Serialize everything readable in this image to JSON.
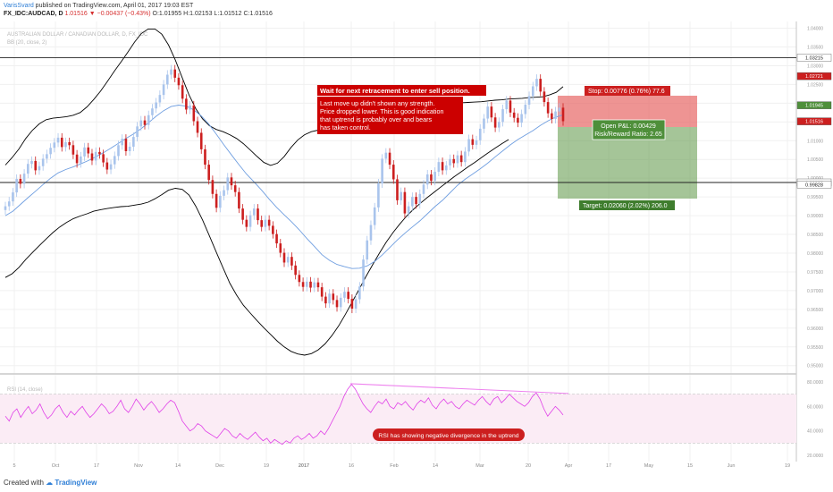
{
  "header": {
    "author": "VarisSvard",
    "published": "published on TradingView.com, April 01, 2017 19:03 EST",
    "symbol": "FX_IDC:AUDCAD, D",
    "last": "1.01516",
    "change": "−0.00437 (−0.43%)",
    "ohlc": [
      "O:1.01955",
      "H:1.02153",
      "L:1.01512",
      "C:1.01516"
    ]
  },
  "watermark": {
    "pair": "AUSTRALIAN DOLLAR / CANADIAN DOLLAR, D, FX_IDC",
    "indicator": "BB (20, close, 2)",
    "rsi": "RSI (14, close)"
  },
  "annotations": {
    "sell_title": "Wait for next retracement to enter sell position.",
    "sell_body": [
      "Last move up didn't shown any strength.",
      "Price dropped lower. This is good indication",
      "that uptrend is probably over and bears",
      "has taken control."
    ],
    "rsi_note": "RSI has showing negative divergence in the uptrend",
    "stop": "Stop: 0.00776 (0.76%) 77.6",
    "target": "Target: 0.02060 (2.02%) 206.0",
    "pnl": "Open P&L: 0.00429",
    "rr": "Risk/Reward Ratio: 2.65"
  },
  "footer": {
    "created": "Created with",
    "brand": "TradingView"
  },
  "chart_data": {
    "type": "candlestick",
    "price_axis": {
      "ticks": [
        "1.04000",
        "1.03500",
        "1.03000",
        "1.02500",
        "1.02000",
        "1.01500",
        "1.01000",
        "1.00500",
        "1.00000",
        "0.99500",
        "0.99000",
        "0.98500",
        "0.98000",
        "0.97500",
        "0.97000",
        "0.96500",
        "0.96000",
        "0.95500",
        "0.95000"
      ],
      "ylim": [
        0.9485,
        1.0418
      ],
      "markers": [
        {
          "label": "1.03215",
          "value": 1.03215,
          "style": "line"
        },
        {
          "label": "1.02721",
          "value": 1.02721,
          "style": "red"
        },
        {
          "label": "1.01945",
          "value": 1.01945,
          "style": "green"
        },
        {
          "label": "1.01516",
          "value": 1.01516,
          "style": "red"
        },
        {
          "label": "0.99885",
          "value": 0.99885,
          "style": "line"
        },
        {
          "label": "0.99828",
          "value": 0.99828,
          "style": "line"
        }
      ]
    },
    "horizontal_lines": [
      1.03215,
      0.99885
    ],
    "position": {
      "entry": 1.01945,
      "stop": 1.02721,
      "target": 0.99885
    },
    "time_axis": [
      "5",
      "Oct",
      "17",
      "Nov",
      "14",
      "Dec",
      "19",
      "2017",
      "16",
      "Feb",
      "14",
      "Mar",
      "20",
      "Apr",
      "17",
      "May",
      "15",
      "Jun",
      "19"
    ],
    "rsi_axis": {
      "ticks": [
        "80.0000",
        "60.0000",
        "40.0000",
        "20.0000"
      ],
      "ylim": [
        15,
        85
      ]
    },
    "colors": {
      "up": "#a9c4ec",
      "down": "#cc1f1f",
      "bb": "#000000",
      "basis": "#6f9ee0",
      "rsi": "#e040e8",
      "divergence": "#ee82ee"
    },
    "closes": [
      0.9925,
      0.9938,
      0.9962,
      0.9998,
      0.9985,
      1.0012,
      1.0038,
      1.0046,
      1.0021,
      1.0032,
      1.0052,
      1.0064,
      1.0081,
      1.0095,
      1.0108,
      1.0083,
      1.0096,
      1.0088,
      1.0063,
      1.004,
      1.0058,
      1.0082,
      1.0066,
      1.0047,
      1.007,
      1.0064,
      1.0042,
      1.0023,
      1.0037,
      1.0059,
      1.0088,
      1.0105,
      1.0072,
      1.0084,
      1.011,
      1.0138,
      1.0154,
      1.0142,
      1.0168,
      1.0186,
      1.0202,
      1.0222,
      1.025,
      1.0276,
      1.029,
      1.0268,
      1.0248,
      1.0212,
      1.0183,
      1.0194,
      1.0152,
      1.0121,
      1.0077,
      1.0036,
      0.9995,
      0.9958,
      0.9921,
      0.9953,
      0.9968,
      1.0002,
      0.9981,
      0.9963,
      0.9919,
      0.9889,
      0.987,
      0.9901,
      0.9919,
      0.9888,
      0.987,
      0.9889,
      0.9873,
      0.9851,
      0.9826,
      0.9801,
      0.9775,
      0.979,
      0.9767,
      0.9742,
      0.9723,
      0.971,
      0.9724,
      0.9708,
      0.9722,
      0.9709,
      0.9684,
      0.9666,
      0.9692,
      0.9675,
      0.9656,
      0.9681,
      0.9697,
      0.9678,
      0.9652,
      0.9677,
      0.9711,
      0.9783,
      0.9834,
      0.9875,
      0.9922,
      0.9986,
      1.0052,
      1.0068,
      1.0036,
      0.9997,
      0.9941,
      0.9963,
      0.9906,
      0.9925,
      0.995,
      0.9931,
      0.9958,
      0.9983,
      1.001,
      0.9993,
      1.0017,
      1.0043,
      1.0021,
      1.0034,
      1.0051,
      1.004,
      1.0061,
      1.0043,
      1.0071,
      1.0104,
      1.0089,
      1.0101,
      1.0132,
      1.0159,
      1.0191,
      1.0162,
      1.0135,
      1.015,
      1.0184,
      1.0207,
      1.0175,
      1.0161,
      1.0148,
      1.0171,
      1.0196,
      1.0219,
      1.0245,
      1.0265,
      1.0231,
      1.0203,
      1.0173,
      1.0158,
      1.0178,
      1.0188,
      1.0152
    ],
    "bb_upper": [
      1.0035,
      1.0055,
      1.0078,
      1.0106,
      1.0128,
      1.0145,
      1.0156,
      1.016,
      1.0162,
      1.0164,
      1.0168,
      1.0175,
      1.019,
      1.021,
      1.0232,
      1.0258,
      1.0285,
      1.031,
      1.0336,
      1.0363,
      1.0386,
      1.0398,
      1.0398,
      1.0384,
      1.0355,
      1.0315,
      1.0268,
      1.0222,
      1.0185,
      1.0158,
      1.014,
      1.013,
      1.0124,
      1.0116,
      1.0106,
      1.0092,
      1.0075,
      1.0058,
      1.0042,
      1.0034,
      1.004,
      1.0058,
      1.0082,
      1.0102,
      1.0116,
      1.0124,
      1.0128,
      1.0132,
      1.0139,
      1.0149,
      1.016,
      1.0172,
      1.0183,
      1.0192,
      1.0199,
      1.0203,
      1.0205,
      1.0205,
      1.0203,
      1.02,
      1.0197,
      1.0195,
      1.0194,
      1.0194,
      1.0195,
      1.0197,
      1.0199,
      1.0201,
      1.0202,
      1.0203,
      1.0204,
      1.0206,
      1.0208,
      1.0209,
      1.0211,
      1.0212,
      1.0213,
      1.0215,
      1.0216,
      1.0217,
      1.0222,
      1.0229,
      1.0244
    ],
    "bb_basis": [
      0.99,
      0.9912,
      0.993,
      0.9948,
      0.9965,
      0.9983,
      1.0,
      1.0014,
      1.0023,
      1.003,
      1.0038,
      1.0047,
      1.0057,
      1.0068,
      1.008,
      1.0093,
      1.0106,
      1.0118,
      1.0132,
      1.0148,
      1.0165,
      1.018,
      1.0191,
      1.0195,
      1.0192,
      1.0182,
      1.0166,
      1.0144,
      1.0117,
      1.0089,
      1.0062,
      1.0036,
      1.0011,
      0.999,
      0.9968,
      0.9944,
      0.9922,
      0.9902,
      0.9883,
      0.9862,
      0.9839,
      0.9818,
      0.9796,
      0.9781,
      0.977,
      0.9764,
      0.9759,
      0.976,
      0.9766,
      0.9778,
      0.9795,
      0.9815,
      0.9835,
      0.9853,
      0.987,
      0.9886,
      0.9905,
      0.9924,
      0.9941,
      0.9961,
      0.9981,
      0.9997,
      1.0011,
      1.0025,
      1.004,
      1.0057,
      1.0073,
      1.0089,
      1.0103,
      1.0115,
      1.0127,
      1.0141,
      1.0153,
      1.0163,
      1.0169
    ],
    "bb_lower": [
      0.9735,
      0.9745,
      0.9762,
      0.9783,
      0.9802,
      0.982,
      0.9838,
      0.9855,
      0.987,
      0.9882,
      0.9892,
      0.9899,
      0.9905,
      0.9912,
      0.9916,
      0.9919,
      0.9922,
      0.9924,
      0.9925,
      0.9928,
      0.9931,
      0.9936,
      0.9945,
      0.9956,
      0.9968,
      0.9973,
      0.997,
      0.9955,
      0.9925,
      0.9888,
      0.9846,
      0.9803,
      0.9761,
      0.972,
      0.9688,
      0.9661,
      0.964,
      0.962,
      0.9601,
      0.9583,
      0.9565,
      0.955,
      0.9538,
      0.9531,
      0.9528,
      0.9532,
      0.9542,
      0.9558,
      0.958,
      0.9606,
      0.9637,
      0.967,
      0.9703,
      0.9737,
      0.9769,
      0.98,
      0.9829,
      0.9855,
      0.9878,
      0.9899,
      0.9917,
      0.9933,
      0.9948,
      0.9962,
      0.9976,
      0.999,
      1.0004,
      1.0017,
      1.003,
      1.0042,
      1.0055,
      1.0068,
      1.008,
      1.0092,
      1.0103
    ],
    "rsi": [
      52,
      48,
      55,
      58,
      51,
      56,
      60,
      54,
      57,
      62,
      55,
      50,
      53,
      58,
      61,
      55,
      51,
      56,
      53,
      57,
      60,
      55,
      51,
      54,
      58,
      62,
      59,
      54,
      56,
      60,
      65,
      58,
      55,
      60,
      66,
      62,
      57,
      61,
      64,
      60,
      55,
      58,
      62,
      65,
      63,
      56,
      48,
      44,
      40,
      42,
      46,
      44,
      40,
      38,
      36,
      34,
      38,
      42,
      40,
      36,
      34,
      38,
      35,
      33,
      36,
      39,
      35,
      32,
      34,
      30,
      33,
      31,
      29,
      32,
      30,
      34,
      36,
      33,
      35,
      38,
      34,
      36,
      40,
      37,
      42,
      48,
      54,
      60,
      68,
      74,
      78,
      74,
      68,
      62,
      58,
      55,
      60,
      64,
      62,
      66,
      60,
      58,
      63,
      61,
      64,
      60,
      57,
      62,
      65,
      63,
      67,
      61,
      58,
      63,
      66,
      62,
      64,
      60,
      58,
      62,
      65,
      63,
      61,
      65,
      68,
      64,
      61,
      66,
      68,
      63,
      66,
      70,
      67,
      64,
      62,
      60,
      63,
      68,
      71,
      66,
      58,
      52,
      56,
      60,
      57,
      53
    ]
  }
}
